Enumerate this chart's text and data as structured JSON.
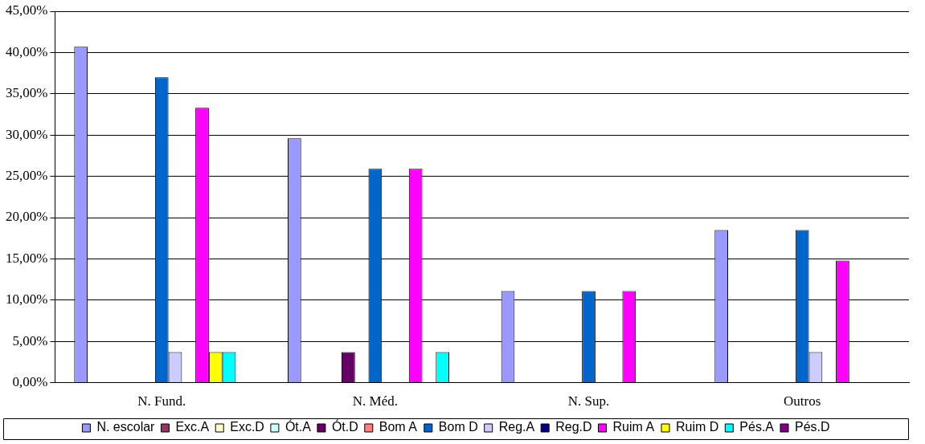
{
  "chart_data": {
    "type": "bar",
    "categories": [
      "N. Fund.",
      "N. Méd.",
      "N. Sup.",
      "Outros"
    ],
    "series": [
      {
        "name": "N. escolar",
        "color": "#9999ff",
        "values": [
          40.7,
          29.6,
          11.1,
          18.5
        ]
      },
      {
        "name": "Exc.A",
        "color": "#993366",
        "values": [
          0,
          0,
          0,
          0
        ]
      },
      {
        "name": "Exc.D",
        "color": "#ffffcc",
        "values": [
          0,
          0,
          0,
          0
        ]
      },
      {
        "name": "Ót.A",
        "color": "#ccffff",
        "values": [
          0,
          0,
          0,
          0
        ]
      },
      {
        "name": "Ót.D",
        "color": "#660066",
        "values": [
          0,
          3.7,
          0,
          0
        ]
      },
      {
        "name": "Bom A",
        "color": "#ff8080",
        "values": [
          0,
          0,
          0,
          0
        ]
      },
      {
        "name": "Bom D",
        "color": "#0066cc",
        "values": [
          37.0,
          25.9,
          11.1,
          18.5
        ]
      },
      {
        "name": "Reg.A",
        "color": "#ccccff",
        "values": [
          3.7,
          0,
          0,
          3.7
        ]
      },
      {
        "name": "Reg.D",
        "color": "#000080",
        "values": [
          0,
          0,
          0,
          0
        ]
      },
      {
        "name": "Ruim A",
        "color": "#ff00ff",
        "values": [
          33.3,
          25.9,
          11.1,
          14.8
        ]
      },
      {
        "name": "Ruim D",
        "color": "#ffff00",
        "values": [
          3.7,
          0,
          0,
          0
        ]
      },
      {
        "name": "Pés.A",
        "color": "#00ffff",
        "values": [
          3.7,
          3.7,
          0,
          0
        ]
      },
      {
        "name": "Pés.D",
        "color": "#800080",
        "values": [
          0,
          0,
          0,
          0
        ]
      }
    ],
    "ylim": [
      0,
      45
    ],
    "yticks": [
      {
        "value": 0,
        "label": "0,00%"
      },
      {
        "value": 5,
        "label": "5,00%"
      },
      {
        "value": 10,
        "label": "10,00%"
      },
      {
        "value": 15,
        "label": "15,00%"
      },
      {
        "value": 20,
        "label": "20,00%"
      },
      {
        "value": 25,
        "label": "25,00%"
      },
      {
        "value": 30,
        "label": "30,00%"
      },
      {
        "value": 35,
        "label": "35,00%"
      },
      {
        "value": 40,
        "label": "40,00%"
      },
      {
        "value": 45,
        "label": "45,00%"
      }
    ],
    "grid": "y",
    "legend": "bottom"
  }
}
